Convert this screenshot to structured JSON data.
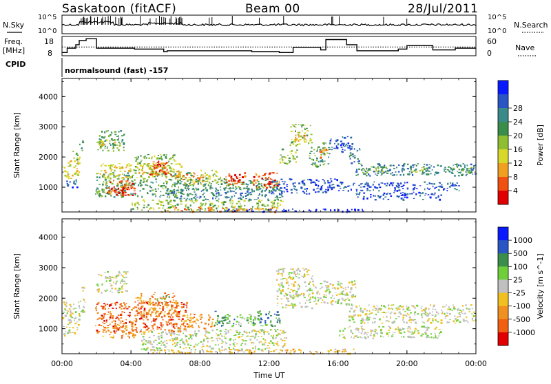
{
  "header": {
    "station": "Saskatoon (fitACF)",
    "beam": "Beam 00",
    "date": "28/Jul/2011"
  },
  "noise_panel": {
    "left_label": "N.Sky",
    "right_label": "N.Search",
    "left_ticks": [
      "10^5",
      "10^0"
    ],
    "right_ticks": [
      "10^5",
      "10^0"
    ]
  },
  "freq_panel": {
    "left_label_1": "Freq.",
    "left_label_2": "[MHz]",
    "left_ticks": [
      "18",
      "8"
    ],
    "right_label": "Nave",
    "right_ticks": [
      "60",
      "0"
    ],
    "freq_steps": [
      [
        0,
        0.3,
        9.5
      ],
      [
        0.3,
        0.8,
        12
      ],
      [
        0.8,
        1.0,
        14
      ],
      [
        1.0,
        1.4,
        16.5
      ],
      [
        1.4,
        2.0,
        17.5
      ],
      [
        2.0,
        4.2,
        12
      ],
      [
        4.2,
        5.9,
        11.5
      ],
      [
        5.9,
        6.1,
        10
      ],
      [
        6.1,
        8.5,
        10.5
      ],
      [
        8.5,
        9.1,
        10.5
      ],
      [
        9.1,
        11.0,
        10.5
      ],
      [
        11.0,
        12.6,
        10.0
      ],
      [
        12.6,
        13.4,
        9.5
      ],
      [
        13.4,
        15.0,
        12.5
      ],
      [
        15.0,
        15.3,
        11
      ],
      [
        15.3,
        16.5,
        17
      ],
      [
        16.5,
        17.1,
        14
      ],
      [
        17.1,
        19.5,
        10.5
      ],
      [
        19.5,
        20.0,
        11.5
      ],
      [
        20.0,
        21.5,
        13.5
      ],
      [
        21.5,
        22.8,
        11
      ],
      [
        22.8,
        24.0,
        12
      ]
    ],
    "nave_level": 28
  },
  "cpid": {
    "label": "CPID",
    "mode": "normalsound (fast) -157"
  },
  "x_axis": {
    "label": "Time UT",
    "ticks": [
      "00:00",
      "04:00",
      "08:00",
      "12:00",
      "16:00",
      "20:00",
      "00:00"
    ]
  },
  "chart_data": [
    {
      "type": "heatmap",
      "title": "",
      "parameter": "Power",
      "xlabel": "Time UT",
      "ylabel": "Slant Range [km]",
      "xlim": [
        0,
        24
      ],
      "ylim": [
        180,
        4600
      ],
      "y_ticks": [
        1000,
        2000,
        3000,
        4000
      ],
      "colorbar": {
        "label": "Power [dB]",
        "ticks": [
          "4",
          "8",
          "12",
          "16",
          "20",
          "24",
          "28"
        ],
        "colors": [
          "#0a1aff",
          "#2a55c4",
          "#3a8a8a",
          "#3a8d4a",
          "#8fbf30",
          "#d8d82a",
          "#f0a020",
          "#f05010",
          "#e00000"
        ]
      },
      "regions": [
        {
          "t0": 0.0,
          "t1": 1.0,
          "r0": 1300,
          "r1": 1900,
          "c": 5
        },
        {
          "t0": 0.2,
          "t1": 0.9,
          "r0": 1000,
          "r1": 1300,
          "c": 1
        },
        {
          "t0": 0.6,
          "t1": 1.0,
          "r0": 1900,
          "r1": 2300,
          "c": 4
        },
        {
          "t0": 1.0,
          "t1": 1.2,
          "r0": 2100,
          "r1": 2600,
          "c": 3
        },
        {
          "t0": 2.0,
          "t1": 3.6,
          "r0": 2200,
          "r1": 2900,
          "c": 3
        },
        {
          "t0": 2.1,
          "t1": 3.4,
          "r0": 2300,
          "r1": 2600,
          "c": 5
        },
        {
          "t0": 1.9,
          "t1": 7.5,
          "r0": 700,
          "r1": 1500,
          "c": 3
        },
        {
          "t0": 2.0,
          "t1": 7.0,
          "r0": 1300,
          "r1": 1800,
          "c": 5
        },
        {
          "t0": 2.5,
          "t1": 4.2,
          "r0": 750,
          "r1": 1250,
          "c": 7
        },
        {
          "t0": 3.0,
          "t1": 4.2,
          "r0": 750,
          "r1": 1000,
          "c": 8
        },
        {
          "t0": 4.2,
          "t1": 6.6,
          "r0": 1500,
          "r1": 2100,
          "c": 4
        },
        {
          "t0": 5.0,
          "t1": 6.3,
          "r0": 1400,
          "r1": 1900,
          "c": 7
        },
        {
          "t0": 5.3,
          "t1": 5.9,
          "r0": 1500,
          "r1": 1800,
          "c": 8
        },
        {
          "t0": 6.5,
          "t1": 8.2,
          "r0": 1100,
          "r1": 1500,
          "c": 6
        },
        {
          "t0": 4.0,
          "t1": 12.8,
          "r0": 250,
          "r1": 600,
          "c": 4
        },
        {
          "t0": 5.0,
          "t1": 12.5,
          "r0": 200,
          "r1": 350,
          "c": 6
        },
        {
          "t0": 6.0,
          "t1": 12.8,
          "r0": 600,
          "r1": 1000,
          "c": 2
        },
        {
          "t0": 7.0,
          "t1": 12.6,
          "r0": 900,
          "r1": 1300,
          "c": 3
        },
        {
          "t0": 8.0,
          "t1": 9.2,
          "r0": 1200,
          "r1": 1600,
          "c": 4
        },
        {
          "t0": 9.4,
          "t1": 10.6,
          "r0": 1100,
          "r1": 1500,
          "c": 7
        },
        {
          "t0": 9.8,
          "t1": 10.3,
          "r0": 1200,
          "r1": 1400,
          "c": 8
        },
        {
          "t0": 11.0,
          "t1": 12.6,
          "r0": 1000,
          "r1": 1500,
          "c": 7
        },
        {
          "t0": 11.6,
          "t1": 12.3,
          "r0": 1050,
          "r1": 1300,
          "c": 8
        },
        {
          "t0": 12.6,
          "t1": 13.6,
          "r0": 1800,
          "r1": 2300,
          "c": 4
        },
        {
          "t0": 13.2,
          "t1": 14.4,
          "r0": 2400,
          "r1": 3100,
          "c": 4
        },
        {
          "t0": 13.5,
          "t1": 14.2,
          "r0": 2500,
          "r1": 2900,
          "c": 6
        },
        {
          "t0": 14.3,
          "t1": 15.5,
          "r0": 1700,
          "r1": 2500,
          "c": 3
        },
        {
          "t0": 14.8,
          "t1": 15.4,
          "r0": 2000,
          "r1": 2300,
          "c": 6
        },
        {
          "t0": 15.5,
          "t1": 16.8,
          "r0": 2200,
          "r1": 2700,
          "c": 1
        },
        {
          "t0": 16.6,
          "t1": 17.3,
          "r0": 1800,
          "r1": 2300,
          "c": 2
        },
        {
          "t0": 17.0,
          "t1": 24.0,
          "r0": 1400,
          "r1": 1800,
          "c": 2
        },
        {
          "t0": 17.3,
          "t1": 18.8,
          "r0": 1500,
          "r1": 1700,
          "c": 4
        },
        {
          "t0": 20.2,
          "t1": 21.0,
          "r0": 1500,
          "r1": 1700,
          "c": 4
        },
        {
          "t0": 22.3,
          "t1": 23.8,
          "r0": 1400,
          "r1": 1700,
          "c": 3
        },
        {
          "t0": 16.0,
          "t1": 23.0,
          "r0": 900,
          "r1": 1200,
          "c": 1
        },
        {
          "t0": 17.0,
          "t1": 22.0,
          "r0": 600,
          "r1": 850,
          "c": 1
        },
        {
          "t0": 12.0,
          "t1": 16.0,
          "r0": 800,
          "r1": 1300,
          "c": 1
        },
        {
          "t0": 9.5,
          "t1": 17.5,
          "r0": 200,
          "r1": 300,
          "c": 0
        }
      ]
    },
    {
      "type": "heatmap",
      "title": "",
      "parameter": "Velocity",
      "xlabel": "Time UT",
      "ylabel": "Slant Range [km]",
      "xlim": [
        0,
        24
      ],
      "ylim": [
        180,
        4600
      ],
      "y_ticks": [
        1000,
        2000,
        3000,
        4000
      ],
      "colorbar": {
        "label": "Velocity [m s^-1]",
        "ticks": [
          "1000",
          "500",
          "100",
          "25",
          "-25",
          "-100",
          "-500",
          "-1000"
        ],
        "colors": [
          "#0a1aff",
          "#2a55c4",
          "#3a8d4a",
          "#6fcf3a",
          "#c0c0c0",
          "#f0c020",
          "#f09020",
          "#f06010",
          "#e00000"
        ]
      },
      "regions": [
        {
          "t0": 0.0,
          "t1": 1.0,
          "r0": 800,
          "r1": 1900,
          "c": 4
        },
        {
          "t0": 1.0,
          "t1": 1.3,
          "r0": 1500,
          "r1": 2400,
          "c": 4
        },
        {
          "t0": 2.0,
          "t1": 3.8,
          "r0": 2200,
          "r1": 2900,
          "c": 4
        },
        {
          "t0": 1.9,
          "t1": 7.2,
          "r0": 900,
          "r1": 1900,
          "c": 7
        },
        {
          "t0": 2.3,
          "t1": 4.2,
          "r0": 700,
          "r1": 1300,
          "c": 6
        },
        {
          "t0": 4.2,
          "t1": 6.7,
          "r0": 1400,
          "r1": 2200,
          "c": 6
        },
        {
          "t0": 5.5,
          "t1": 6.3,
          "r0": 1900,
          "r1": 2100,
          "c": 3
        },
        {
          "t0": 4.5,
          "t1": 13.0,
          "r0": 300,
          "r1": 1000,
          "c": 4
        },
        {
          "t0": 7.0,
          "t1": 8.8,
          "r0": 1000,
          "r1": 1500,
          "c": 6
        },
        {
          "t0": 8.8,
          "t1": 10.0,
          "r0": 1100,
          "r1": 1600,
          "c": 2
        },
        {
          "t0": 10.0,
          "t1": 11.2,
          "r0": 1100,
          "r1": 1500,
          "c": 3
        },
        {
          "t0": 11.0,
          "t1": 12.6,
          "r0": 1100,
          "r1": 1600,
          "c": 2
        },
        {
          "t0": 12.4,
          "t1": 14.5,
          "r0": 1700,
          "r1": 3000,
          "c": 4
        },
        {
          "t0": 14.3,
          "t1": 17.0,
          "r0": 1800,
          "r1": 2600,
          "c": 4
        },
        {
          "t0": 16.6,
          "t1": 24.0,
          "r0": 1200,
          "r1": 1800,
          "c": 4
        },
        {
          "t0": 16.0,
          "t1": 22.0,
          "r0": 700,
          "r1": 1100,
          "c": 4
        },
        {
          "t0": 5.0,
          "t1": 17.0,
          "r0": 200,
          "r1": 350,
          "c": 5
        }
      ]
    }
  ]
}
